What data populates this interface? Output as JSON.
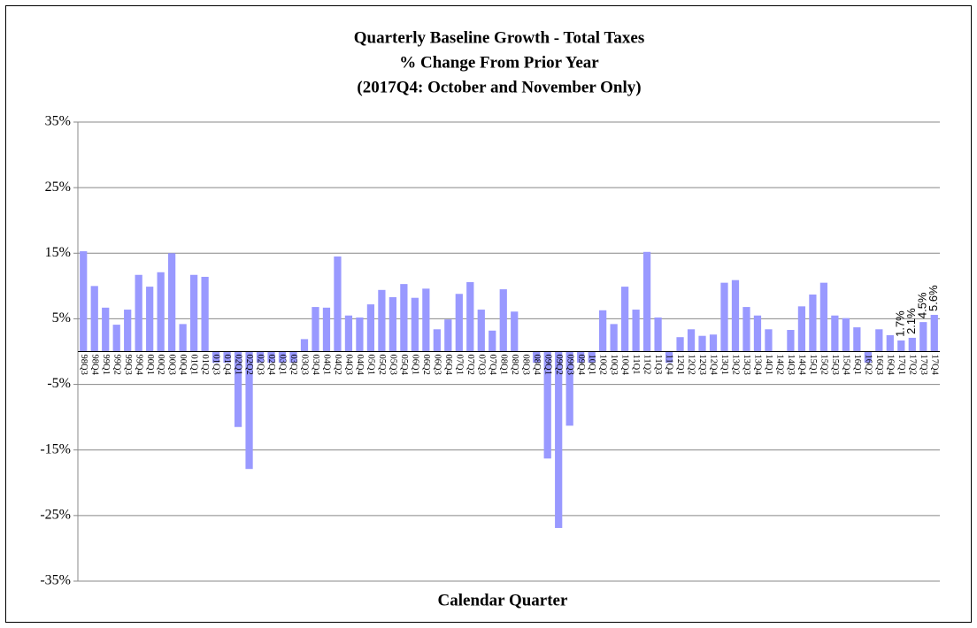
{
  "chart_data": {
    "type": "bar",
    "title": [
      "Quarterly Baseline Growth - Total Taxes",
      "% Change From Prior Year",
      "(2017Q4: October and November Only)"
    ],
    "x_label": "Calendar Quarter",
    "color": "#9999ff",
    "grid": true,
    "categories": [
      "98Q3",
      "98Q4",
      "99Q1",
      "99Q2",
      "99Q3",
      "99Q4",
      "00Q1",
      "00Q2",
      "00Q3",
      "00Q4",
      "01Q1",
      "01Q2",
      "01Q3",
      "01Q4",
      "02Q1",
      "02Q2",
      "02Q3",
      "02Q4",
      "03Q1",
      "03Q2",
      "03Q3",
      "03Q4",
      "04Q1",
      "04Q2",
      "04Q3",
      "04Q4",
      "05Q1",
      "05Q2",
      "05Q3",
      "05Q4",
      "06Q1",
      "06Q2",
      "06Q3",
      "06Q4",
      "07Q1",
      "07Q2",
      "07Q3",
      "07Q4",
      "08Q1",
      "08Q2",
      "08Q3",
      "08Q4",
      "09Q1",
      "09Q2",
      "09Q3",
      "09Q4",
      "10Q1",
      "10Q2",
      "10Q3",
      "10Q4",
      "11Q1",
      "11Q2",
      "11Q3",
      "11Q4",
      "12Q1",
      "12Q2",
      "12Q3",
      "12Q4",
      "13Q1",
      "13Q2",
      "13Q3",
      "13Q4",
      "14Q1",
      "14Q2",
      "14Q3",
      "14Q4",
      "15Q1",
      "15Q2",
      "15Q3",
      "15Q4",
      "16Q1",
      "16Q2",
      "16Q3",
      "16Q4",
      "17Q1",
      "17Q2",
      "17Q3",
      "17Q4"
    ],
    "values": [
      15.3,
      10.0,
      6.7,
      4.1,
      6.4,
      11.7,
      9.9,
      12.1,
      15.0,
      4.2,
      11.7,
      11.4,
      -1.7,
      -1.7,
      -11.5,
      -17.9,
      -1.7,
      -1.7,
      -1.7,
      -1.7,
      1.9,
      6.8,
      6.7,
      14.5,
      5.5,
      5.2,
      7.2,
      9.4,
      8.3,
      10.3,
      8.2,
      9.6,
      3.4,
      4.9,
      8.8,
      10.6,
      6.4,
      3.2,
      9.5,
      6.1,
      0,
      -1.7,
      -16.3,
      -26.9,
      -11.3,
      -1.7,
      -1.7,
      6.3,
      4.2,
      9.9,
      6.4,
      15.2,
      5.2,
      -1.7,
      2.2,
      3.4,
      2.4,
      2.6,
      10.5,
      10.9,
      6.8,
      5.5,
      3.4,
      0,
      3.3,
      6.9,
      8.7,
      10.5,
      5.5,
      5.1,
      3.7,
      -1.7,
      3.4,
      2.5,
      1.7,
      2.1,
      4.5,
      5.6
    ],
    "value_labels": [
      null,
      null,
      null,
      null,
      null,
      null,
      null,
      null,
      null,
      null,
      null,
      null,
      null,
      null,
      null,
      null,
      null,
      null,
      null,
      null,
      null,
      null,
      null,
      null,
      null,
      null,
      null,
      null,
      null,
      null,
      null,
      null,
      null,
      null,
      null,
      null,
      null,
      null,
      null,
      null,
      null,
      null,
      null,
      null,
      null,
      null,
      null,
      null,
      null,
      null,
      null,
      null,
      null,
      null,
      null,
      null,
      null,
      null,
      null,
      null,
      null,
      null,
      null,
      null,
      null,
      null,
      null,
      null,
      null,
      null,
      null,
      null,
      null,
      null,
      "1.7%",
      "2.1%",
      "4.5%",
      "5.6%"
    ],
    "ylim": [
      -35,
      35
    ],
    "yticks": [
      {
        "value": 35,
        "label": "35%"
      },
      {
        "value": 25,
        "label": "25%"
      },
      {
        "value": 15,
        "label": "15%"
      },
      {
        "value": 5,
        "label": "5%"
      },
      {
        "value": -5,
        "label": "-5%"
      },
      {
        "value": -15,
        "label": "-15%"
      },
      {
        "value": -25,
        "label": "-25%"
      },
      {
        "value": -35,
        "label": "-35%"
      }
    ]
  }
}
